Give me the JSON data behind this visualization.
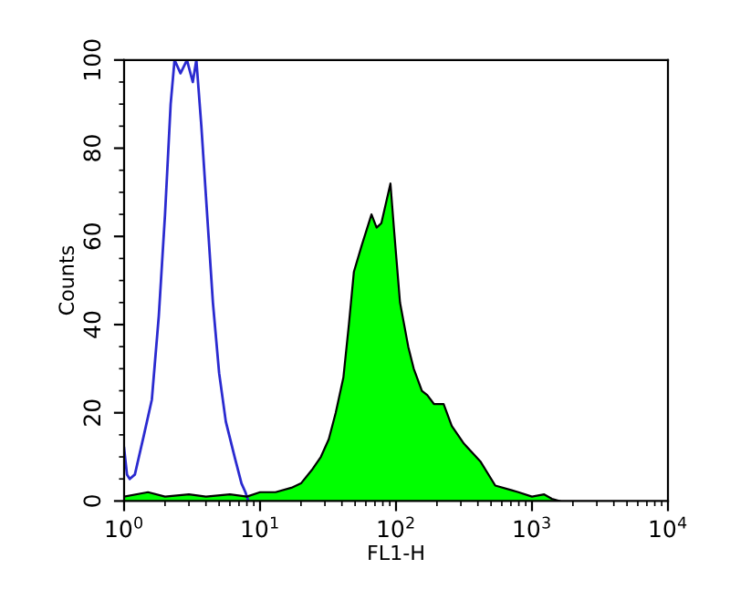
{
  "chart_data": {
    "type": "line",
    "xlabel": "FL1-H",
    "ylabel": "Counts",
    "log": "x",
    "xlim": [
      1,
      10000
    ],
    "ylim": [
      0,
      100
    ],
    "xticks": [
      {
        "value": 1,
        "label": "10$^{0}$"
      },
      {
        "value": 10,
        "label": "10$^{1}$"
      },
      {
        "value": 100,
        "label": "10$^{2}$"
      },
      {
        "value": 1000,
        "label": "10$^{3}$"
      },
      {
        "value": 10000,
        "label": "10$^{4}$"
      }
    ],
    "yticks": [
      0,
      20,
      40,
      60,
      80,
      100
    ],
    "grid": false,
    "legend": false,
    "marker": "none",
    "line_style": "solid",
    "series": [
      {
        "color": "#2a2ad0",
        "x": [
          1.0,
          1.05,
          1.1,
          1.2,
          1.4,
          1.6,
          1.8,
          2.0,
          2.2,
          2.35,
          2.6,
          2.9,
          3.2,
          3.4,
          3.7,
          4.1,
          4.5,
          5.0,
          5.6,
          6.5,
          7.3,
          7.8,
          8.2
        ],
        "values": [
          12,
          6,
          5,
          6,
          15,
          23,
          42,
          65,
          90,
          100,
          97,
          100,
          95,
          100,
          85,
          64,
          45,
          29,
          18,
          10,
          4,
          2,
          0
        ]
      },
      {
        "type": "area",
        "color": "#00ff00",
        "x": [
          1,
          1.5,
          2,
          3,
          4,
          6,
          8,
          10,
          13,
          17,
          20,
          24,
          28,
          32,
          36,
          41,
          45,
          49,
          56,
          66,
          72,
          78,
          85,
          91,
          97,
          107,
          123,
          135,
          155,
          170,
          190,
          224,
          257,
          316,
          417,
          537,
          700,
          794,
          1000,
          1230,
          1400,
          1600
        ],
        "values": [
          1,
          2,
          1,
          1.5,
          1,
          1.5,
          1,
          2,
          2,
          3,
          4,
          7,
          10,
          14,
          20,
          28,
          40,
          52,
          58,
          65,
          62,
          63,
          68,
          72,
          61,
          45,
          35,
          30,
          25,
          24,
          22,
          22,
          17,
          13,
          9,
          3.5,
          2.5,
          2,
          1,
          1.5,
          0.5,
          0
        ]
      }
    ]
  }
}
